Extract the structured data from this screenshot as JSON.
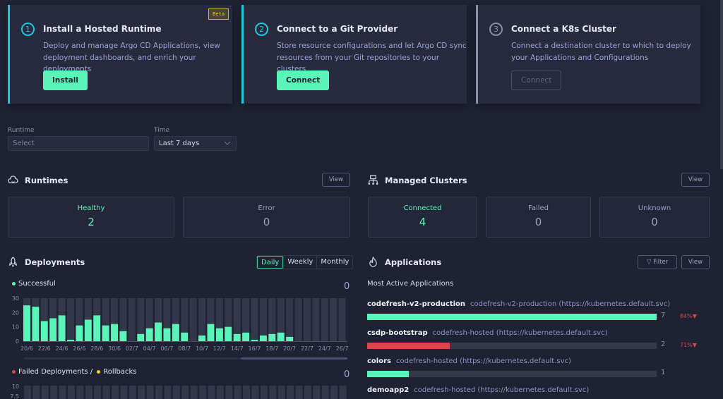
{
  "onboarding": [
    {
      "step": "1",
      "title": "Install a Hosted Runtime",
      "description": "Deploy and manage Argo CD Applications, view deployment dashboards, and enrich your deployments",
      "button": "Install",
      "badge": "Beta",
      "accent": "#1ec8dc"
    },
    {
      "step": "2",
      "title": "Connect to a Git Provider",
      "description": "Store resource configurations and let Argo CD sync resources from your Git repositories to your clusters",
      "button": "Connect",
      "accent": "#1ec8dc"
    },
    {
      "step": "3",
      "title": "Connect a K8s Cluster",
      "description": "Connect a destination cluster to which to deploy your Applications and Configurations",
      "button": "Connect",
      "disabled": true,
      "accent": "#8a8ea6"
    }
  ],
  "filters": {
    "runtime_label": "Runtime",
    "runtime_placeholder": "Select",
    "time_label": "Time",
    "time_value": "Last 7 days"
  },
  "runtimes": {
    "title": "Runtimes",
    "view": "View",
    "stats": [
      {
        "label": "Healthy",
        "value": "2"
      },
      {
        "label": "Error",
        "value": "0"
      }
    ]
  },
  "clusters": {
    "title": "Managed Clusters",
    "view": "View",
    "stats": [
      {
        "label": "Connected",
        "value": "4"
      },
      {
        "label": "Failed",
        "value": "0"
      },
      {
        "label": "Unknown",
        "value": "0"
      }
    ]
  },
  "deployments": {
    "title": "Deployments",
    "tabs": [
      "Daily",
      "Weekly",
      "Monthly"
    ],
    "active_tab": "Daily",
    "successful_label": "Successful",
    "successful_total": "0",
    "failed_label": "Failed Deployments /",
    "rollbacks_label": "Rollbacks",
    "failed_total": "0",
    "failed_y_ticks": [
      "10",
      "7.5"
    ]
  },
  "chart_data": {
    "type": "bar",
    "series": [
      {
        "name": "Successful",
        "color": "#5cf5b9",
        "values": [
          25,
          24,
          14,
          16,
          18,
          1,
          11,
          15,
          18,
          11,
          12,
          7,
          0,
          5,
          9,
          13,
          9,
          12,
          6,
          0,
          4,
          12,
          9,
          10,
          5,
          6,
          1,
          4,
          5,
          6,
          3,
          0,
          0,
          0,
          0,
          0,
          0
        ]
      }
    ],
    "categories": [
      "20/6",
      "21/6",
      "22/6",
      "23/6",
      "24/6",
      "25/6",
      "26/6",
      "27/6",
      "28/6",
      "29/6",
      "30/6",
      "01/7",
      "02/7",
      "03/7",
      "04/7",
      "05/7",
      "06/7",
      "07/7",
      "08/7",
      "09/7",
      "10/7",
      "11/7",
      "12/7",
      "13/7",
      "14/7",
      "15/7",
      "16/7",
      "17/7",
      "18/7",
      "19/7",
      "20/7",
      "21/7",
      "22/7",
      "23/7",
      "24/7",
      "25/7",
      "26/7"
    ],
    "tick_labels": [
      "20/6",
      "22/6",
      "24/6",
      "26/6",
      "28/6",
      "30/6",
      "02/7",
      "04/7",
      "06/7",
      "08/7",
      "10/7",
      "12/7",
      "14/7",
      "16/7",
      "18/7",
      "20/7",
      "22/7",
      "24/7",
      "26/7"
    ],
    "y_ticks": [
      "30",
      "20",
      "10",
      "0"
    ],
    "ylim": [
      0,
      30
    ],
    "grid": false
  },
  "applications": {
    "title": "Applications",
    "filter": "Filter",
    "view": "View",
    "subtitle": "Most Active Applications",
    "items": [
      {
        "name": "codefresh-v2-production",
        "destination": "codefresh-v2-production (https://kubernetes.default.svc)",
        "count": "7",
        "fraction": 1.0,
        "color": "#5cf5b9",
        "pct": "84%"
      },
      {
        "name": "csdp-bootstrap",
        "destination": "codefresh-hosted (https://kubernetes.default.svc)",
        "count": "2",
        "fraction": 0.286,
        "color": "#e0454e",
        "pct": "71%"
      },
      {
        "name": "colors",
        "destination": "codefresh-hosted (https://kubernetes.default.svc)",
        "count": "1",
        "fraction": 0.143,
        "color": "#5cf5b9"
      },
      {
        "name": "demoapp2",
        "destination": "codefresh-hosted (https://kubernetes.default.svc)"
      }
    ]
  }
}
